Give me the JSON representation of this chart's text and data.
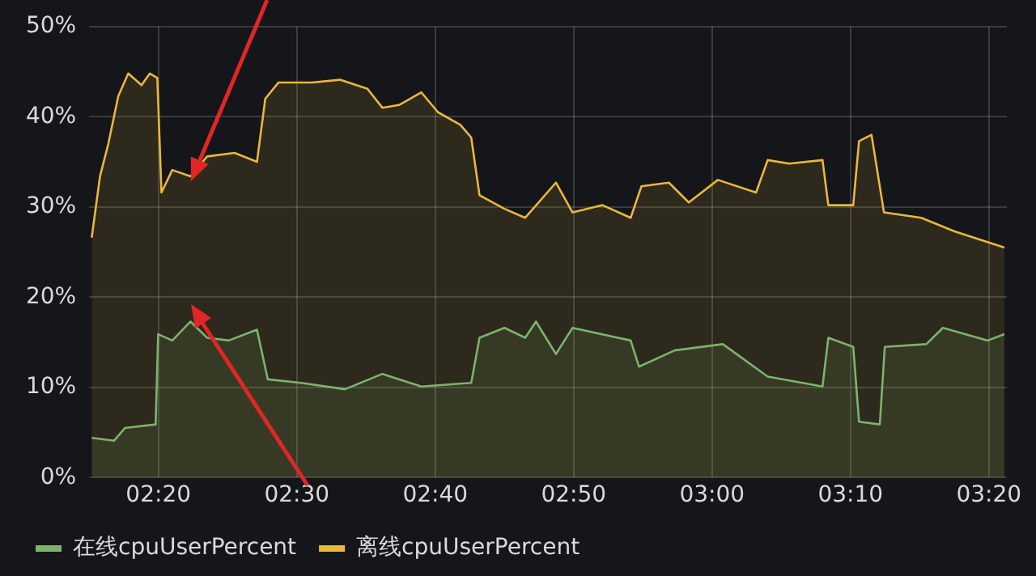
{
  "chart_data": {
    "type": "area",
    "xlim": [
      2.25,
      3.355
    ],
    "xticks": [
      {
        "value": 2.3333,
        "label": "02:20"
      },
      {
        "value": 2.5,
        "label": "02:30"
      },
      {
        "value": 2.6667,
        "label": "02:40"
      },
      {
        "value": 2.8333,
        "label": "02:50"
      },
      {
        "value": 3,
        "label": "03:00"
      },
      {
        "value": 3.1667,
        "label": "03:10"
      },
      {
        "value": 3.3333,
        "label": "03:20"
      }
    ],
    "ylim": [
      0,
      50
    ],
    "yticks": [
      {
        "value": 0,
        "label": "0%"
      },
      {
        "value": 10,
        "label": "10%"
      },
      {
        "value": 20,
        "label": "20%"
      },
      {
        "value": 30,
        "label": "30%"
      },
      {
        "value": 40,
        "label": "40%"
      },
      {
        "value": 50,
        "label": "50%"
      }
    ],
    "grid": true,
    "legend": "bottom",
    "series": [
      {
        "name": "在线cpuUserPercent",
        "color": "#7eb26d",
        "x": [
          2.253,
          2.28,
          2.293,
          2.33,
          2.333,
          2.35,
          2.372,
          2.392,
          2.418,
          2.452,
          2.465,
          2.505,
          2.558,
          2.603,
          2.65,
          2.71,
          2.72,
          2.75,
          2.775,
          2.788,
          2.812,
          2.832,
          2.902,
          2.912,
          2.955,
          3.013,
          3.067,
          3.133,
          3.14,
          3.17,
          3.177,
          3.202,
          3.208,
          3.258,
          3.278,
          3.332,
          3.352
        ],
        "values": [
          4.4,
          4.1,
          5.5,
          5.9,
          15.9,
          15.2,
          17.3,
          15.5,
          15.2,
          16.4,
          10.9,
          10.5,
          9.8,
          11.5,
          10.1,
          10.5,
          15.5,
          16.6,
          15.5,
          17.3,
          13.7,
          16.6,
          15.2,
          12.3,
          14.1,
          14.8,
          11.2,
          10.1,
          15.5,
          14.5,
          6.2,
          5.9,
          14.5,
          14.8,
          16.6,
          15.2,
          15.9
        ]
      },
      {
        "name": "离线cpuUserPercent",
        "color": "#eab839",
        "x": [
          2.253,
          2.263,
          2.273,
          2.285,
          2.297,
          2.313,
          2.323,
          2.332,
          2.337,
          2.35,
          2.372,
          2.392,
          2.425,
          2.452,
          2.462,
          2.478,
          2.518,
          2.552,
          2.585,
          2.603,
          2.623,
          2.65,
          2.67,
          2.697,
          2.71,
          2.72,
          2.75,
          2.775,
          2.812,
          2.832,
          2.868,
          2.902,
          2.915,
          2.948,
          2.972,
          3.007,
          3.053,
          3.067,
          3.093,
          3.133,
          3.14,
          3.17,
          3.177,
          3.192,
          3.207,
          3.252,
          3.292,
          3.325,
          3.352
        ],
        "values": [
          26.6,
          33.4,
          37.0,
          42.3,
          44.8,
          43.5,
          44.8,
          44.3,
          31.6,
          34.1,
          33.4,
          35.6,
          36.0,
          35.0,
          42.0,
          43.8,
          43.8,
          44.1,
          43.1,
          41.0,
          41.3,
          42.7,
          40.5,
          39.1,
          37.7,
          31.3,
          29.8,
          28.8,
          32.7,
          29.4,
          30.2,
          28.8,
          32.3,
          32.7,
          30.5,
          33.0,
          31.6,
          35.2,
          34.8,
          35.2,
          30.2,
          30.2,
          37.3,
          38.0,
          29.4,
          28.8,
          27.3,
          26.3,
          25.5
        ]
      }
    ]
  }
}
